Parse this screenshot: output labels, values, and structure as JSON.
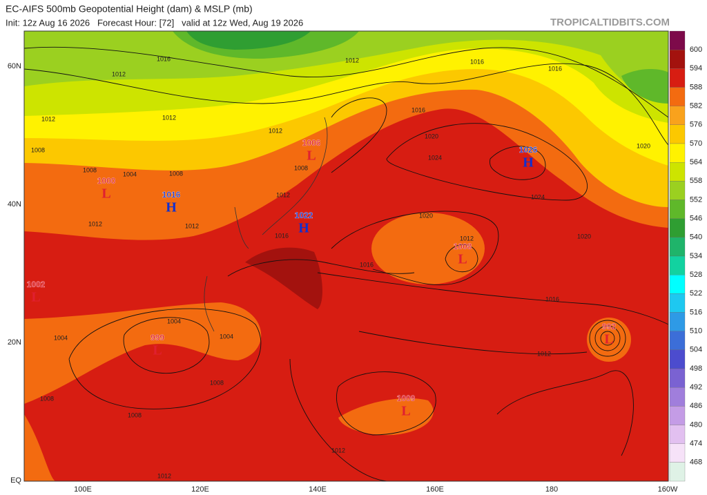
{
  "header": {
    "title": "EC-AIFS 500mb Geopotential Height (dam) & MSLP (mb)",
    "subtitle": "Init: 12z Aug 16 2026   Forecast Hour: [72]   valid at 12z Wed, Aug 19 2026",
    "brand": "TROPICALTIDBITS.COM"
  },
  "map": {
    "lat_labels": [
      "60N",
      "40N",
      "20N",
      "EQ"
    ],
    "lon_labels": [
      "100E",
      "120E",
      "140E",
      "160E",
      "180",
      "160W"
    ],
    "centers": [
      {
        "type": "H",
        "pressure": "1026"
      },
      {
        "type": "H",
        "pressure": "1016"
      },
      {
        "type": "H",
        "pressure": "1022"
      },
      {
        "type": "L",
        "pressure": "1006"
      },
      {
        "type": "L",
        "pressure": "1000"
      },
      {
        "type": "L",
        "pressure": "1002"
      },
      {
        "type": "L",
        "pressure": "1008"
      },
      {
        "type": "L",
        "pressure": "999"
      },
      {
        "type": "L",
        "pressure": "1009"
      },
      {
        "type": "L",
        "pressure": "992"
      }
    ],
    "isobar_labels": [
      "1016",
      "1012",
      "1012",
      "1016",
      "1016",
      "1020",
      "1016",
      "1020",
      "1024",
      "1012",
      "1012",
      "1008",
      "1004",
      "1008",
      "1008",
      "1012",
      "1020",
      "1012",
      "1020",
      "1024",
      "1016",
      "1016",
      "1012",
      "1004",
      "1004",
      "1008",
      "1008",
      "1004",
      "1012",
      "1012",
      "1008",
      "1012",
      "1016",
      "1008",
      "1012",
      "1012"
    ]
  },
  "colorbar": {
    "labels": [
      "600",
      "594",
      "588",
      "582",
      "576",
      "570",
      "564",
      "558",
      "552",
      "546",
      "540",
      "534",
      "528",
      "522",
      "516",
      "510",
      "504",
      "498",
      "492",
      "486",
      "480",
      "474",
      "468"
    ],
    "colors": [
      "#7d0a4a",
      "#a3120e",
      "#d71d12",
      "#f36b10",
      "#f9a21c",
      "#fcc800",
      "#fff200",
      "#cde400",
      "#9bd020",
      "#5fb82a",
      "#2f9e32",
      "#1fb46a",
      "#12d2a0",
      "#00ffff",
      "#1ec8f0",
      "#2e9ae6",
      "#3c6ed8",
      "#4c4cce",
      "#7a62d2",
      "#a07edc",
      "#c49ce6",
      "#e2c0f0",
      "#f6e2f8",
      "#dff2e6"
    ]
  }
}
